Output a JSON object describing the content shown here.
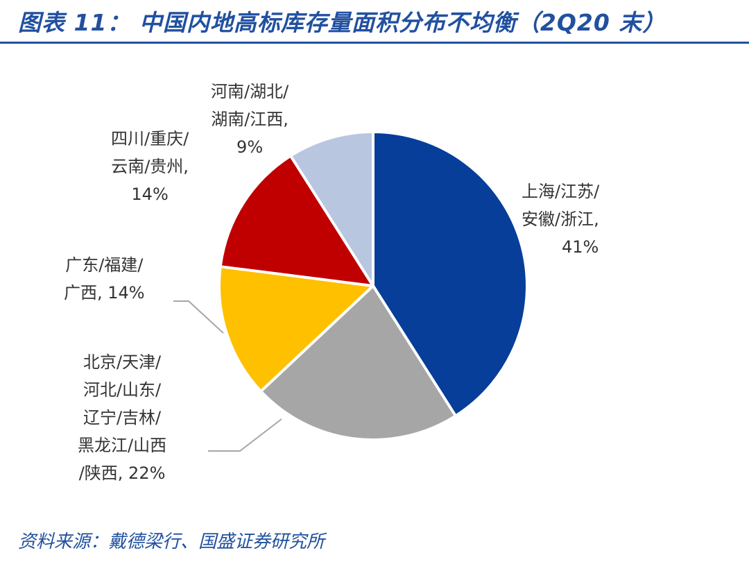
{
  "title": "图表 11： 中国内地高标库存量面积分布不均衡（2Q20 末）",
  "source": "资料来源：戴德梁行、国盛证券研究所",
  "chart_data": {
    "type": "pie",
    "title": "中国内地高标库存量面积分布不均衡（2Q20 末）",
    "unit": "%",
    "start": "12 o'clock, clockwise",
    "slices": [
      {
        "name": "上海/江苏/安徽/浙江",
        "lines": [
          "上海/江苏/",
          "安徽/浙江,",
          "41%"
        ],
        "value": 41,
        "color": "#063e99"
      },
      {
        "name": "北京/天津/河北/山东/辽宁/吉林/黑龙江/山西/陕西",
        "lines": [
          "北京/天津/",
          "河北/山东/",
          "辽宁/吉林/",
          "黑龙江/山西",
          "/陕西, 22%"
        ],
        "value": 22,
        "color": "#a6a6a6"
      },
      {
        "name": "广东/福建/广西",
        "lines": [
          "广东/福建/",
          "广西, 14%"
        ],
        "value": 14,
        "color": "#ffc000"
      },
      {
        "name": "四川/重庆/云南/贵州",
        "lines": [
          "四川/重庆/",
          "云南/贵州,",
          "14%"
        ],
        "value": 14,
        "color": "#c00000"
      },
      {
        "name": "河南/湖北/湖南/江西",
        "lines": [
          "河南/湖北/",
          "湖南/江西,",
          "9%"
        ],
        "value": 9,
        "color": "#b9c6e0"
      }
    ]
  }
}
